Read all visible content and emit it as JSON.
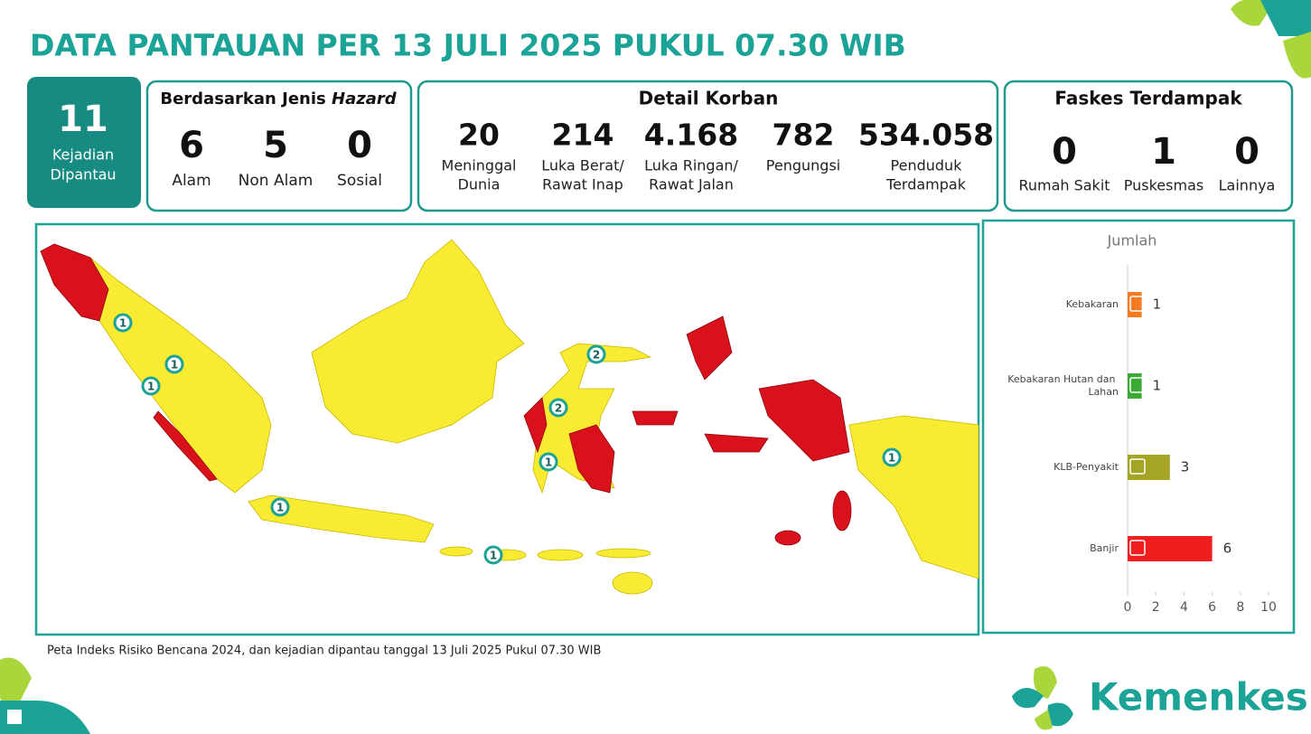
{
  "header": {
    "title": "DATA PANTAUAN PER 13 JULI 2025 PUKUL 07.30 WIB"
  },
  "kejadian": {
    "value": 11,
    "lines": [
      "Kejadian",
      "Dipantau"
    ]
  },
  "hazard": {
    "title": "Berdasarkan Jenis ",
    "title_em": "Hazard",
    "items": [
      {
        "value": 6,
        "label": "Alam"
      },
      {
        "value": 5,
        "label": "Non Alam"
      },
      {
        "value": 0,
        "label": "Sosial"
      }
    ]
  },
  "korban": {
    "title": "Detail Korban",
    "items": [
      {
        "value": 20,
        "lines": [
          "Meninggal",
          "Dunia"
        ]
      },
      {
        "value": 214,
        "lines": [
          "Luka Berat/",
          "Rawat Inap"
        ]
      },
      {
        "value": "4.168",
        "lines": [
          "Luka Ringan/",
          "Rawat Jalan"
        ]
      },
      {
        "value": 782,
        "lines": [
          "Pengungsi"
        ]
      },
      {
        "value": "534.058",
        "lines": [
          "Penduduk",
          "Terdampak"
        ]
      }
    ]
  },
  "faskes": {
    "title": "Faskes Terdampak",
    "items": [
      {
        "value": 0,
        "label": "Rumah Sakit"
      },
      {
        "value": 1,
        "label": "Puskesmas"
      },
      {
        "value": 0,
        "label": "Lainnya"
      }
    ]
  },
  "map": {
    "markers": [
      1,
      1,
      1,
      2,
      2,
      1,
      1,
      1,
      1
    ],
    "caption": "Peta Indeks Risiko Bencana 2024, dan kejadian dipantau tanggal 13 Juli 2025 Pukul 07.30 WIB"
  },
  "logo": {
    "text": "Kemenkes"
  },
  "chart_data": {
    "type": "bar",
    "orientation": "horizontal",
    "title": "Jumlah",
    "categories": [
      "Kebakaran",
      "Kebakaran Hutan dan Lahan",
      "KLB-Penyakit",
      "Banjir"
    ],
    "values": [
      1,
      1,
      3,
      6
    ],
    "colors": [
      "#f47b20",
      "#3aaa35",
      "#a5a524",
      "#f01e1e"
    ],
    "xlim": [
      0,
      10
    ],
    "xticks": [
      0,
      2,
      4,
      6,
      8,
      10
    ]
  }
}
